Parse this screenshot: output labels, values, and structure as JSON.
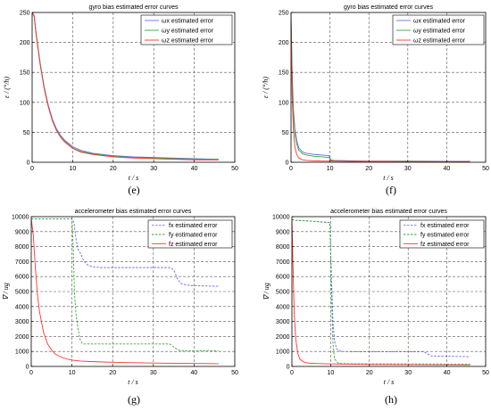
{
  "chart_data": [
    {
      "type": "line",
      "title": "gyro bias estimated error curves",
      "xlabel": "t / s",
      "ylabel": "ε / (°/h)",
      "xlim": [
        0,
        50
      ],
      "ylim": [
        0,
        250
      ],
      "xticks": [
        0,
        10,
        20,
        30,
        40,
        50
      ],
      "yticks": [
        0,
        50,
        100,
        150,
        200,
        250
      ],
      "grid": true,
      "legend_position": "top-right",
      "caption": "(e)",
      "series": [
        {
          "name": "ωx estimated error",
          "color": "#6a6af0",
          "style": "solid",
          "x": [
            0,
            0.5,
            1,
            2,
            3,
            4,
            5,
            6,
            7,
            8,
            10,
            12,
            15,
            20,
            25,
            30,
            35,
            40,
            46
          ],
          "y": [
            250,
            245,
            215,
            165,
            125,
            95,
            72,
            56,
            45,
            37,
            26,
            20,
            15,
            11,
            9,
            8,
            7,
            6,
            5
          ]
        },
        {
          "name": "ωy estimated error",
          "color": "#33aa33",
          "style": "solid",
          "x": [
            0,
            0.5,
            1,
            2,
            3,
            4,
            5,
            6,
            7,
            8,
            10,
            12,
            15,
            20,
            25,
            30,
            35,
            40,
            46
          ],
          "y": [
            250,
            244,
            213,
            163,
            123,
            93,
            70,
            54,
            43,
            35,
            24,
            18,
            14,
            10,
            8,
            7,
            6,
            5,
            5
          ]
        },
        {
          "name": "ωz estimated error",
          "color": "#ff3333",
          "style": "solid",
          "x": [
            0,
            0.5,
            1,
            2,
            3,
            4,
            5,
            6,
            7,
            8,
            10,
            12,
            15,
            20,
            25,
            30,
            35,
            40,
            46
          ],
          "y": [
            250,
            243,
            212,
            162,
            122,
            92,
            69,
            53,
            42,
            34,
            23,
            17,
            13,
            9,
            7,
            6,
            5,
            4,
            4
          ]
        }
      ]
    },
    {
      "type": "line",
      "title": "gyro bias estimated error curves",
      "xlabel": "t / s",
      "ylabel": "ε / (°/h)",
      "xlim": [
        0,
        50
      ],
      "ylim": [
        0,
        250
      ],
      "xticks": [
        0,
        10,
        20,
        30,
        40,
        50
      ],
      "yticks": [
        0,
        50,
        100,
        150,
        200,
        250
      ],
      "grid": true,
      "legend_position": "top-right",
      "caption": "(f)",
      "series": [
        {
          "name": "ωx estimated error",
          "color": "#6a6af0",
          "style": "solid",
          "x": [
            0,
            0.3,
            0.6,
            1,
            1.5,
            2,
            3,
            4,
            6,
            8,
            9.8,
            10.2,
            11,
            15,
            20,
            30,
            40,
            46
          ],
          "y": [
            250,
            150,
            90,
            55,
            35,
            24,
            17,
            15,
            13,
            12,
            11,
            4,
            3,
            2.5,
            2,
            2,
            1.5,
            1.5
          ]
        },
        {
          "name": "ωy estimated error",
          "color": "#33aa33",
          "style": "solid",
          "x": [
            0,
            0.3,
            0.6,
            1,
            1.5,
            2,
            3,
            4,
            6,
            8,
            9.8,
            10.2,
            11,
            15,
            20,
            30,
            40,
            46
          ],
          "y": [
            240,
            140,
            82,
            48,
            30,
            20,
            14,
            12,
            10,
            9,
            8,
            3,
            2,
            2,
            1.5,
            1.5,
            1,
            1
          ]
        },
        {
          "name": "ωz estimated error",
          "color": "#ff3333",
          "style": "solid",
          "x": [
            0,
            0.3,
            0.6,
            1,
            1.5,
            2,
            3,
            4,
            6,
            8,
            10,
            15,
            20,
            30,
            40,
            46
          ],
          "y": [
            230,
            110,
            55,
            25,
            12,
            7,
            4,
            3,
            2.5,
            2,
            2,
            1.5,
            1.5,
            1,
            1,
            1
          ]
        }
      ]
    },
    {
      "type": "line",
      "title": "accelerometer bias estimated error curves",
      "xlabel": "t / s",
      "ylabel": "∇ / ug",
      "xlim": [
        0,
        50
      ],
      "ylim": [
        0,
        10000
      ],
      "xticks": [
        0,
        10,
        20,
        30,
        40,
        50
      ],
      "yticks": [
        0,
        1000,
        2000,
        3000,
        4000,
        5000,
        6000,
        7000,
        8000,
        9000,
        10000
      ],
      "grid": true,
      "legend_position": "top-right",
      "caption": "(g)",
      "series": [
        {
          "name": "fx estimated error",
          "color": "#6a6af0",
          "style": "dashed",
          "x": [
            0,
            10,
            10.5,
            11,
            11.5,
            12,
            12.5,
            13,
            14,
            15,
            17,
            20,
            34,
            35,
            36,
            37,
            39,
            46
          ],
          "y": [
            9850,
            9850,
            9600,
            8500,
            7800,
            7600,
            7300,
            7000,
            6750,
            6650,
            6600,
            6600,
            6600,
            6450,
            5800,
            5500,
            5400,
            5350
          ]
        },
        {
          "name": "fy estimated error",
          "color": "#33aa33",
          "style": "dashed",
          "x": [
            0,
            10,
            10.3,
            10.6,
            11,
            11.5,
            12,
            12.5,
            13,
            15,
            20,
            34,
            35,
            36,
            37,
            46
          ],
          "y": [
            9850,
            9850,
            8000,
            5000,
            3500,
            2500,
            1800,
            1550,
            1500,
            1500,
            1500,
            1500,
            1300,
            1100,
            1050,
            1050
          ]
        },
        {
          "name": "fz estimated error",
          "color": "#ff3333",
          "style": "solid",
          "x": [
            0,
            0.5,
            1,
            1.5,
            2,
            3,
            4,
            5,
            6,
            8,
            10,
            12,
            15,
            20,
            25,
            30,
            35,
            40,
            46
          ],
          "y": [
            9850,
            8800,
            6600,
            4900,
            3700,
            2300,
            1500,
            1100,
            800,
            550,
            420,
            360,
            320,
            280,
            250,
            230,
            210,
            200,
            180
          ]
        }
      ]
    },
    {
      "type": "line",
      "title": "accelerometer bias estimated error curves",
      "xlabel": "t / s",
      "ylabel": "∇ / ug",
      "xlim": [
        0,
        50
      ],
      "ylim": [
        0,
        10000
      ],
      "xticks": [
        0,
        10,
        20,
        30,
        40,
        50
      ],
      "yticks": [
        0,
        1000,
        2000,
        3000,
        4000,
        5000,
        6000,
        7000,
        8000,
        9000,
        10000
      ],
      "grid": true,
      "legend_position": "top-right",
      "caption": "(h)",
      "series": [
        {
          "name": "fx estimated error",
          "color": "#6a6af0",
          "style": "dashed",
          "x": [
            0,
            0.5,
            1,
            5,
            9.8,
            10.2,
            10.6,
            11,
            11.5,
            12,
            13,
            15,
            20,
            34,
            35,
            36,
            46
          ],
          "y": [
            9800,
            9780,
            9760,
            9700,
            9600,
            6000,
            3000,
            1700,
            1200,
            1050,
            1000,
            980,
            980,
            980,
            850,
            700,
            650
          ]
        },
        {
          "name": "fy estimated error",
          "color": "#33aa33",
          "style": "dashed",
          "x": [
            0,
            0.5,
            1,
            5,
            9.8,
            10.2,
            10.6,
            11,
            12,
            15,
            20,
            46
          ],
          "y": [
            9800,
            9780,
            9750,
            9700,
            9600,
            5000,
            1500,
            500,
            200,
            180,
            170,
            150
          ]
        },
        {
          "name": "fz estimated error",
          "color": "#ff3333",
          "style": "solid",
          "x": [
            0,
            0.3,
            0.6,
            1,
            1.5,
            2,
            3,
            4,
            6,
            8,
            10,
            15,
            20,
            30,
            46
          ],
          "y": [
            9800,
            6500,
            3500,
            1800,
            900,
            500,
            300,
            230,
            200,
            180,
            170,
            150,
            130,
            120,
            100
          ]
        }
      ]
    }
  ]
}
